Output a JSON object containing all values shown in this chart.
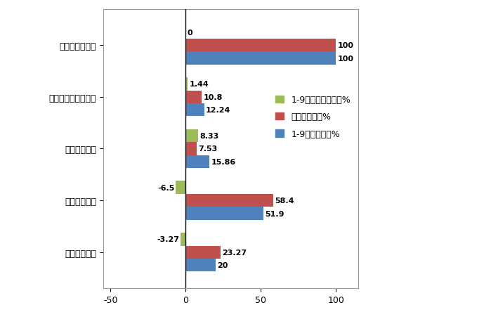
{
  "categories": [
    "新能源重卡合计",
    "其他类新能源专用车",
    "新能源搅拌车",
    "新能源牵引车",
    "新能源自卸车"
  ],
  "series_order": [
    "1-9月占比同比增减%",
    "去年同期占比%",
    "1-9月累计占比%"
  ],
  "series": {
    "1-9月占比同比增减%": [
      0,
      1.44,
      8.33,
      -6.5,
      -3.27
    ],
    "去年同期占比%": [
      100,
      10.8,
      7.53,
      58.4,
      23.27
    ],
    "1-9月累计占比%": [
      100,
      12.24,
      15.86,
      51.9,
      20
    ]
  },
  "colors": {
    "1-9月占比同比增减%": "#9BBB59",
    "去年同期占比%": "#C0504D",
    "1-9月累计占比%": "#4F81BD"
  },
  "xlim": [
    -55,
    115
  ],
  "xticks": [
    -50,
    0,
    50,
    100
  ],
  "background_color": "#FFFFFF",
  "bar_height": 0.25,
  "value_labels": {
    "1-9月占比同比增减%": [
      "0",
      "1.44",
      "8.33",
      "-6.5",
      "-3.27"
    ],
    "去年同期占比%": [
      "100",
      "10.8",
      "7.53",
      "58.4",
      "23.27"
    ],
    "1-9月累计占比%": [
      "100",
      "12.24",
      "15.86",
      "51.9",
      "20"
    ]
  },
  "label_fontsize": 8,
  "tick_fontsize": 9,
  "legend_fontsize": 9
}
